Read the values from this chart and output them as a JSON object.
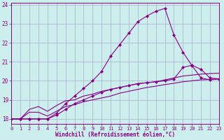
{
  "xlabel": "Windchill (Refroidissement éolien,°C)",
  "xlim": [
    0,
    23
  ],
  "ylim": [
    17.75,
    24.1
  ],
  "yticks": [
    18,
    19,
    20,
    21,
    22,
    23,
    24
  ],
  "xticks": [
    0,
    1,
    2,
    3,
    4,
    5,
    6,
    7,
    8,
    9,
    10,
    11,
    12,
    13,
    14,
    15,
    16,
    17,
    18,
    19,
    20,
    21,
    22,
    23
  ],
  "background_color": "#cceeed",
  "grid_color": "#aaaacc",
  "line_color": "#880088",
  "lines": [
    {
      "x": [
        0,
        1,
        2,
        3,
        4,
        5,
        6,
        7,
        8,
        9,
        10,
        11,
        12,
        13,
        14,
        15,
        16,
        17,
        18,
        19,
        20,
        21,
        22,
        23
      ],
      "y": [
        18.0,
        18.0,
        18.0,
        18.0,
        18.0,
        18.3,
        18.8,
        19.2,
        19.6,
        20.0,
        20.5,
        21.3,
        21.9,
        22.5,
        23.1,
        23.4,
        23.65,
        23.8,
        22.4,
        21.5,
        20.8,
        20.15,
        20.05,
        20.1
      ],
      "marker": "D",
      "markersize": 2.0,
      "linewidth": 0.8
    },
    {
      "x": [
        0,
        1,
        2,
        3,
        4,
        5,
        6,
        7,
        8,
        9,
        10,
        11,
        12,
        13,
        14,
        15,
        16,
        17,
        18,
        19,
        20,
        21,
        22,
        23
      ],
      "y": [
        18.0,
        18.0,
        18.0,
        18.0,
        18.0,
        18.2,
        18.5,
        18.8,
        19.0,
        19.2,
        19.4,
        19.55,
        19.65,
        19.75,
        19.85,
        19.9,
        19.95,
        20.0,
        20.1,
        20.7,
        20.82,
        20.6,
        20.15,
        20.1
      ],
      "marker": "D",
      "markersize": 2.0,
      "linewidth": 0.8
    },
    {
      "x": [
        0,
        1,
        2,
        3,
        4,
        5,
        6,
        7,
        8,
        9,
        10,
        11,
        12,
        13,
        14,
        15,
        16,
        17,
        18,
        19,
        20,
        21,
        22,
        23
      ],
      "y": [
        18.0,
        18.0,
        18.5,
        18.65,
        18.4,
        18.7,
        18.95,
        19.0,
        19.2,
        19.3,
        19.45,
        19.55,
        19.65,
        19.75,
        19.85,
        19.9,
        19.95,
        20.05,
        20.15,
        20.25,
        20.3,
        20.35,
        20.38,
        20.4
      ],
      "marker": null,
      "linewidth": 0.8
    },
    {
      "x": [
        0,
        1,
        2,
        3,
        4,
        5,
        6,
        7,
        8,
        9,
        10,
        11,
        12,
        13,
        14,
        15,
        16,
        17,
        18,
        19,
        20,
        21,
        22,
        23
      ],
      "y": [
        18.0,
        18.0,
        18.35,
        18.35,
        18.15,
        18.4,
        18.65,
        18.75,
        18.9,
        19.0,
        19.1,
        19.2,
        19.35,
        19.45,
        19.55,
        19.65,
        19.72,
        19.8,
        19.87,
        19.95,
        20.0,
        20.05,
        20.07,
        20.1
      ],
      "marker": null,
      "linewidth": 0.8
    }
  ]
}
